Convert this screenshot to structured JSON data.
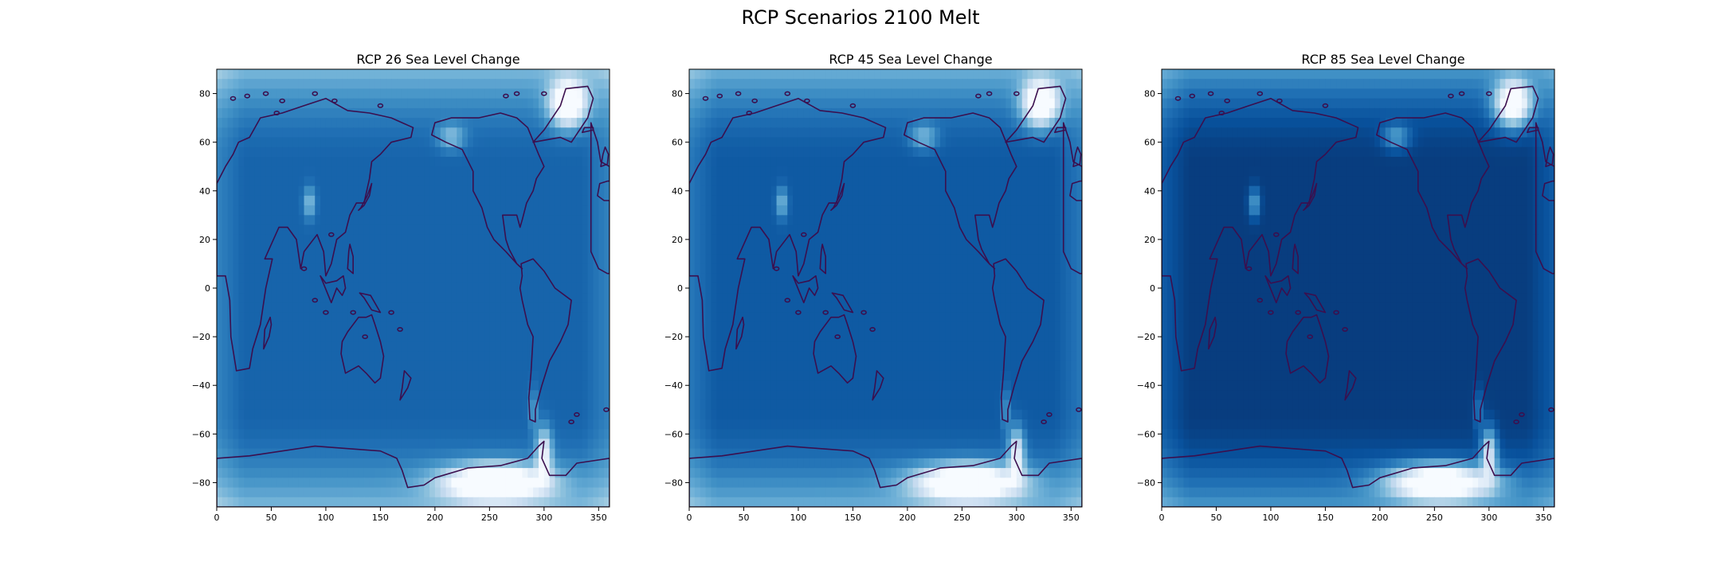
{
  "figure": {
    "title": "RCP Scenarios 2100 Melt"
  },
  "chart_data": [
    {
      "type": "heatmap",
      "title": "RCP 26 Sea Level Change",
      "scenario": "RCP 26",
      "xlim": [
        0,
        360
      ],
      "ylim": [
        -90,
        90
      ],
      "xticks": [
        0,
        50,
        100,
        150,
        200,
        250,
        300,
        350
      ],
      "yticks": [
        -80,
        -60,
        -40,
        -20,
        0,
        20,
        40,
        60,
        80
      ],
      "colormap": "Blues",
      "ocean_intensity": 0.8,
      "coastline_color": "#3b0f4e"
    },
    {
      "type": "heatmap",
      "title": "RCP 45 Sea Level Change",
      "scenario": "RCP 45",
      "xlim": [
        0,
        360
      ],
      "ylim": [
        -90,
        90
      ],
      "xticks": [
        0,
        50,
        100,
        150,
        200,
        250,
        300,
        350
      ],
      "yticks": [
        -80,
        -60,
        -40,
        -20,
        0,
        20,
        40,
        60,
        80
      ],
      "colormap": "Blues",
      "ocean_intensity": 0.84,
      "coastline_color": "#3b0f4e"
    },
    {
      "type": "heatmap",
      "title": "RCP 85 Sea Level Change",
      "scenario": "RCP 85",
      "xlim": [
        0,
        360
      ],
      "ylim": [
        -90,
        90
      ],
      "xticks": [
        0,
        50,
        100,
        150,
        200,
        250,
        300,
        350
      ],
      "yticks": [
        -80,
        -60,
        -40,
        -20,
        0,
        20,
        40,
        60,
        80
      ],
      "colormap": "Blues",
      "ocean_intensity": 0.95,
      "coastline_color": "#3b0f4e"
    }
  ]
}
